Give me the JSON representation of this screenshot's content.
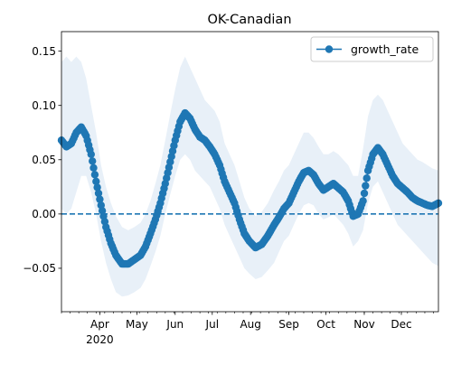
{
  "chart_data": {
    "type": "line",
    "title": "OK-Canadian",
    "xlabel": "",
    "ylabel": "",
    "x_start": "2020-03-01",
    "x_end": "2020-12-31",
    "x_ticks": [
      {
        "date": "2020-04-01",
        "label": "Apr",
        "sublabel": "2020"
      },
      {
        "date": "2020-05-01",
        "label": "May",
        "sublabel": ""
      },
      {
        "date": "2020-06-01",
        "label": "Jun",
        "sublabel": ""
      },
      {
        "date": "2020-07-01",
        "label": "Jul",
        "sublabel": ""
      },
      {
        "date": "2020-08-01",
        "label": "Aug",
        "sublabel": ""
      },
      {
        "date": "2020-09-01",
        "label": "Sep",
        "sublabel": ""
      },
      {
        "date": "2020-10-01",
        "label": "Oct",
        "sublabel": ""
      },
      {
        "date": "2020-11-01",
        "label": "Nov",
        "sublabel": ""
      },
      {
        "date": "2020-12-01",
        "label": "Dec",
        "sublabel": ""
      }
    ],
    "ylim": [
      -0.09,
      0.168
    ],
    "y_ticks": [
      -0.05,
      0.0,
      0.05,
      0.1,
      0.15
    ],
    "y_tick_labels": [
      "−0.05",
      "0.00",
      "0.05",
      "0.10",
      "0.15"
    ],
    "reference_line": {
      "y": 0.0,
      "style": "dashed"
    },
    "legend": {
      "placement": "top-right",
      "entries": [
        "growth_rate"
      ]
    },
    "grid": false,
    "series": [
      {
        "name": "growth_rate",
        "color": "#1f77b4",
        "band_color": "#e8f0f8",
        "points": [
          {
            "date": "2020-03-01",
            "value": 0.068,
            "lower": 0.005,
            "upper": 0.14
          },
          {
            "date": "2020-03-05",
            "value": 0.062,
            "lower": 0.0,
            "upper": 0.145
          },
          {
            "date": "2020-03-09",
            "value": 0.065,
            "lower": 0.005,
            "upper": 0.14
          },
          {
            "date": "2020-03-13",
            "value": 0.075,
            "lower": 0.02,
            "upper": 0.145
          },
          {
            "date": "2020-03-17",
            "value": 0.08,
            "lower": 0.035,
            "upper": 0.14
          },
          {
            "date": "2020-03-21",
            "value": 0.072,
            "lower": 0.035,
            "upper": 0.125
          },
          {
            "date": "2020-03-25",
            "value": 0.055,
            "lower": 0.02,
            "upper": 0.1
          },
          {
            "date": "2020-03-29",
            "value": 0.03,
            "lower": 0.0,
            "upper": 0.075
          },
          {
            "date": "2020-04-02",
            "value": 0.008,
            "lower": -0.025,
            "upper": 0.045
          },
          {
            "date": "2020-04-06",
            "value": -0.012,
            "lower": -0.045,
            "upper": 0.025
          },
          {
            "date": "2020-04-10",
            "value": -0.027,
            "lower": -0.06,
            "upper": 0.01
          },
          {
            "date": "2020-04-14",
            "value": -0.038,
            "lower": -0.072,
            "upper": -0.002
          },
          {
            "date": "2020-04-19",
            "value": -0.046,
            "lower": -0.076,
            "upper": -0.012
          },
          {
            "date": "2020-04-24",
            "value": -0.046,
            "lower": -0.075,
            "upper": -0.015
          },
          {
            "date": "2020-04-29",
            "value": -0.042,
            "lower": -0.072,
            "upper": -0.012
          },
          {
            "date": "2020-05-04",
            "value": -0.038,
            "lower": -0.068,
            "upper": -0.008
          },
          {
            "date": "2020-05-08",
            "value": -0.03,
            "lower": -0.06,
            "upper": 0.0
          },
          {
            "date": "2020-05-12",
            "value": -0.018,
            "lower": -0.048,
            "upper": 0.012
          },
          {
            "date": "2020-05-16",
            "value": -0.005,
            "lower": -0.035,
            "upper": 0.028
          },
          {
            "date": "2020-05-20",
            "value": 0.01,
            "lower": -0.02,
            "upper": 0.045
          },
          {
            "date": "2020-05-24",
            "value": 0.028,
            "lower": 0.0,
            "upper": 0.068
          },
          {
            "date": "2020-05-28",
            "value": 0.048,
            "lower": 0.018,
            "upper": 0.092
          },
          {
            "date": "2020-06-01",
            "value": 0.068,
            "lower": 0.035,
            "upper": 0.115
          },
          {
            "date": "2020-06-05",
            "value": 0.085,
            "lower": 0.05,
            "upper": 0.135
          },
          {
            "date": "2020-06-09",
            "value": 0.093,
            "lower": 0.055,
            "upper": 0.145
          },
          {
            "date": "2020-06-13",
            "value": 0.088,
            "lower": 0.05,
            "upper": 0.135
          },
          {
            "date": "2020-06-17",
            "value": 0.078,
            "lower": 0.04,
            "upper": 0.125
          },
          {
            "date": "2020-06-21",
            "value": 0.071,
            "lower": 0.035,
            "upper": 0.115
          },
          {
            "date": "2020-06-25",
            "value": 0.068,
            "lower": 0.03,
            "upper": 0.105
          },
          {
            "date": "2020-06-29",
            "value": 0.062,
            "lower": 0.025,
            "upper": 0.1
          },
          {
            "date": "2020-07-03",
            "value": 0.055,
            "lower": 0.015,
            "upper": 0.095
          },
          {
            "date": "2020-07-07",
            "value": 0.045,
            "lower": 0.005,
            "upper": 0.085
          },
          {
            "date": "2020-07-11",
            "value": 0.03,
            "lower": -0.01,
            "upper": 0.065
          },
          {
            "date": "2020-07-15",
            "value": 0.02,
            "lower": -0.02,
            "upper": 0.055
          },
          {
            "date": "2020-07-19",
            "value": 0.01,
            "lower": -0.03,
            "upper": 0.045
          },
          {
            "date": "2020-07-23",
            "value": -0.005,
            "lower": -0.04,
            "upper": 0.03
          },
          {
            "date": "2020-07-27",
            "value": -0.018,
            "lower": -0.05,
            "upper": 0.015
          },
          {
            "date": "2020-07-31",
            "value": -0.025,
            "lower": -0.055,
            "upper": 0.005
          },
          {
            "date": "2020-08-05",
            "value": -0.031,
            "lower": -0.06,
            "upper": -0.002
          },
          {
            "date": "2020-08-10",
            "value": -0.028,
            "lower": -0.058,
            "upper": 0.002
          },
          {
            "date": "2020-08-15",
            "value": -0.02,
            "lower": -0.052,
            "upper": 0.01
          },
          {
            "date": "2020-08-20",
            "value": -0.01,
            "lower": -0.045,
            "upper": 0.022
          },
          {
            "date": "2020-08-24",
            "value": -0.003,
            "lower": -0.035,
            "upper": 0.03
          },
          {
            "date": "2020-08-28",
            "value": 0.005,
            "lower": -0.025,
            "upper": 0.04
          },
          {
            "date": "2020-09-01",
            "value": 0.01,
            "lower": -0.02,
            "upper": 0.045
          },
          {
            "date": "2020-09-05",
            "value": 0.02,
            "lower": -0.01,
            "upper": 0.055
          },
          {
            "date": "2020-09-09",
            "value": 0.03,
            "lower": 0.0,
            "upper": 0.065
          },
          {
            "date": "2020-09-13",
            "value": 0.038,
            "lower": 0.008,
            "upper": 0.075
          },
          {
            "date": "2020-09-17",
            "value": 0.04,
            "lower": 0.01,
            "upper": 0.075
          },
          {
            "date": "2020-09-21",
            "value": 0.036,
            "lower": 0.008,
            "upper": 0.07
          },
          {
            "date": "2020-09-25",
            "value": 0.028,
            "lower": 0.0,
            "upper": 0.062
          },
          {
            "date": "2020-09-29",
            "value": 0.022,
            "lower": -0.005,
            "upper": 0.055
          },
          {
            "date": "2020-10-03",
            "value": 0.025,
            "lower": -0.003,
            "upper": 0.055
          },
          {
            "date": "2020-10-07",
            "value": 0.028,
            "lower": 0.0,
            "upper": 0.058
          },
          {
            "date": "2020-10-11",
            "value": 0.024,
            "lower": -0.005,
            "upper": 0.055
          },
          {
            "date": "2020-10-15",
            "value": 0.02,
            "lower": -0.01,
            "upper": 0.05
          },
          {
            "date": "2020-10-19",
            "value": 0.012,
            "lower": -0.018,
            "upper": 0.045
          },
          {
            "date": "2020-10-23",
            "value": -0.002,
            "lower": -0.03,
            "upper": 0.035
          },
          {
            "date": "2020-10-27",
            "value": 0.0,
            "lower": -0.025,
            "upper": 0.035
          },
          {
            "date": "2020-10-31",
            "value": 0.012,
            "lower": -0.015,
            "upper": 0.06
          },
          {
            "date": "2020-11-04",
            "value": 0.04,
            "lower": 0.01,
            "upper": 0.09
          },
          {
            "date": "2020-11-08",
            "value": 0.055,
            "lower": 0.025,
            "upper": 0.105
          },
          {
            "date": "2020-11-12",
            "value": 0.061,
            "lower": 0.03,
            "upper": 0.11
          },
          {
            "date": "2020-11-16",
            "value": 0.055,
            "lower": 0.02,
            "upper": 0.105
          },
          {
            "date": "2020-11-20",
            "value": 0.045,
            "lower": 0.01,
            "upper": 0.095
          },
          {
            "date": "2020-11-24",
            "value": 0.035,
            "lower": 0.0,
            "upper": 0.085
          },
          {
            "date": "2020-11-28",
            "value": 0.028,
            "lower": -0.01,
            "upper": 0.075
          },
          {
            "date": "2020-12-02",
            "value": 0.024,
            "lower": -0.015,
            "upper": 0.065
          },
          {
            "date": "2020-12-06",
            "value": 0.02,
            "lower": -0.02,
            "upper": 0.06
          },
          {
            "date": "2020-12-10",
            "value": 0.015,
            "lower": -0.025,
            "upper": 0.055
          },
          {
            "date": "2020-12-14",
            "value": 0.012,
            "lower": -0.03,
            "upper": 0.05
          },
          {
            "date": "2020-12-18",
            "value": 0.01,
            "lower": -0.035,
            "upper": 0.048
          },
          {
            "date": "2020-12-22",
            "value": 0.008,
            "lower": -0.04,
            "upper": 0.045
          },
          {
            "date": "2020-12-26",
            "value": 0.007,
            "lower": -0.045,
            "upper": 0.042
          },
          {
            "date": "2020-12-31",
            "value": 0.01,
            "lower": -0.048,
            "upper": 0.04
          }
        ]
      }
    ]
  }
}
